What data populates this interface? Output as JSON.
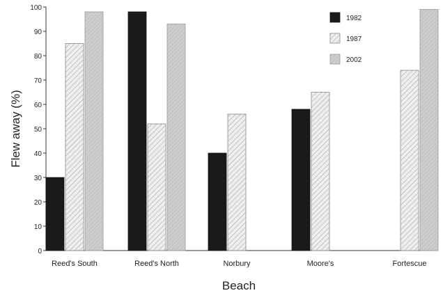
{
  "chart_data": {
    "type": "bar",
    "title": "",
    "xlabel": "Beach",
    "ylabel": "Flew away (%)",
    "ylim": [
      0,
      100
    ],
    "yticks": [
      0,
      10,
      20,
      30,
      40,
      50,
      60,
      70,
      80,
      90,
      100
    ],
    "categories": [
      "Reed's South",
      "Reed's North",
      "Norbury",
      "Moore's",
      "Fortescue"
    ],
    "series": [
      {
        "name": "1982",
        "values": [
          30,
          98,
          40,
          58,
          null
        ]
      },
      {
        "name": "1987",
        "values": [
          85,
          52,
          56,
          65,
          74
        ]
      },
      {
        "name": "2002",
        "values": [
          98,
          93,
          null,
          null,
          99
        ]
      }
    ],
    "legend_position": "top-right",
    "grid": false,
    "colors": {
      "1982": "#1a1a1a",
      "1987": "#e6e6e6",
      "2002": "#c9c9c9"
    }
  }
}
